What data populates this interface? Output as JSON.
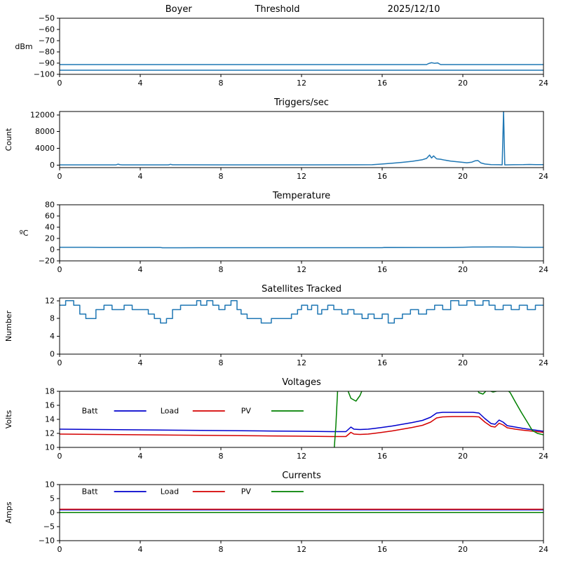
{
  "header": {
    "station": "Boyer",
    "metric": "Threshold",
    "date": "2025/12/10"
  },
  "colors": {
    "data_line": "#1f77b4",
    "batt": "#0000cd",
    "load": "#d40000",
    "pv": "#008000",
    "axis": "#000000"
  },
  "chart_data": [
    {
      "type": "line",
      "titles": [
        {
          "text": "Boyer",
          "x": 0.246
        },
        {
          "text": "Threshold",
          "x": 0.45
        },
        {
          "text": "2025/12/10",
          "x": 0.732
        }
      ],
      "ylabel": "dBm",
      "ylabel_rotated": false,
      "xlim": [
        0,
        24
      ],
      "ylim": [
        -100,
        -50
      ],
      "xticks": [
        0,
        4,
        8,
        12,
        16,
        20,
        24
      ],
      "yticks": [
        -50,
        -60,
        -70,
        -80,
        -90,
        -100
      ],
      "grid": false,
      "series": [
        {
          "name": "threshold-upper",
          "color": "#1f77b4",
          "x": [
            0,
            18.2,
            18.3,
            18.45,
            18.6,
            18.75,
            18.9,
            24
          ],
          "y": [
            -91.3,
            -91.3,
            -90.4,
            -89.6,
            -90.2,
            -89.8,
            -91.3,
            -91.3
          ]
        },
        {
          "name": "threshold-lower",
          "color": "#1f77b4",
          "x": [
            0,
            24
          ],
          "y": [
            -96.3,
            -96.3
          ]
        }
      ]
    },
    {
      "type": "line",
      "title": "Triggers/sec",
      "ylabel": "Count",
      "ylabel_rotated": true,
      "xlim": [
        0,
        24
      ],
      "ylim": [
        -600,
        12800
      ],
      "xticks": [
        0,
        4,
        8,
        12,
        16,
        20,
        24
      ],
      "yticks": [
        0,
        4000,
        8000,
        12000
      ],
      "grid": false,
      "series": [
        {
          "name": "triggers",
          "color": "#1f77b4",
          "x": [
            0,
            2.8,
            2.9,
            3.0,
            3.1,
            5.4,
            5.5,
            5.6,
            8,
            12,
            15.5,
            16,
            16.5,
            17,
            17.5,
            18,
            18.2,
            18.35,
            18.45,
            18.55,
            18.7,
            18.9,
            19.1,
            19.4,
            19.7,
            20,
            20.2,
            20.45,
            20.6,
            20.75,
            20.9,
            21.1,
            21.4,
            21.8,
            21.95,
            22.02,
            22.08,
            22.15,
            22.5,
            23,
            23.3,
            23.6,
            24
          ],
          "y": [
            60,
            60,
            220,
            90,
            60,
            60,
            180,
            70,
            60,
            60,
            80,
            250,
            450,
            650,
            900,
            1300,
            1600,
            2400,
            1700,
            2200,
            1500,
            1400,
            1200,
            950,
            800,
            650,
            550,
            700,
            1000,
            1100,
            500,
            250,
            120,
            80,
            60,
            13000,
            60,
            60,
            80,
            100,
            150,
            120,
            100
          ]
        }
      ]
    },
    {
      "type": "line",
      "title": "Temperature",
      "ylabel": "ºC",
      "ylabel_rotated": false,
      "xlim": [
        0,
        24
      ],
      "ylim": [
        -20,
        80
      ],
      "xticks": [
        0,
        4,
        8,
        12,
        16,
        20,
        24
      ],
      "yticks": [
        -20,
        0,
        20,
        40,
        60,
        80
      ],
      "grid": false,
      "series": [
        {
          "name": "temperature",
          "color": "#1f77b4",
          "x": [
            0,
            2,
            4,
            5,
            5.1,
            7,
            9,
            11,
            13,
            15,
            16,
            16.1,
            18,
            19.5,
            20,
            20.5,
            21,
            21.5,
            22,
            22.5,
            23,
            24
          ],
          "y": [
            4.2,
            4.1,
            4.0,
            4.0,
            3.3,
            3.4,
            3.5,
            3.5,
            3.4,
            3.5,
            3.5,
            4.0,
            3.9,
            4.0,
            4.3,
            4.6,
            4.8,
            4.9,
            4.8,
            4.6,
            4.3,
            4.2
          ]
        }
      ]
    },
    {
      "type": "line",
      "title": "Satellites Tracked",
      "ylabel": "Number",
      "ylabel_rotated": true,
      "xlim": [
        0,
        24
      ],
      "ylim": [
        0,
        12.6
      ],
      "xticks": [
        0,
        4,
        8,
        12,
        16,
        20,
        24
      ],
      "yticks": [
        0,
        4,
        8,
        12
      ],
      "grid": false,
      "series": [
        {
          "name": "satellites",
          "color": "#1f77b4",
          "draw": "step",
          "x": [
            0,
            0.3,
            0.7,
            1.0,
            1.3,
            1.8,
            2.2,
            2.6,
            3.2,
            3.6,
            4.0,
            4.4,
            4.7,
            5.0,
            5.3,
            5.6,
            6.0,
            6.5,
            6.8,
            7.0,
            7.3,
            7.6,
            7.9,
            8.2,
            8.5,
            8.8,
            9.0,
            9.3,
            9.6,
            10.0,
            10.5,
            11.0,
            11.5,
            11.8,
            12.0,
            12.3,
            12.5,
            12.8,
            13.0,
            13.3,
            13.6,
            14.0,
            14.3,
            14.6,
            15.0,
            15.3,
            15.6,
            16.0,
            16.3,
            16.6,
            17.0,
            17.4,
            17.8,
            18.2,
            18.6,
            19.0,
            19.4,
            19.8,
            20.2,
            20.6,
            21.0,
            21.3,
            21.6,
            22.0,
            22.4,
            22.8,
            23.2,
            23.6,
            24.0
          ],
          "y": [
            11,
            12,
            11,
            9,
            8,
            10,
            11,
            10,
            11,
            10,
            10,
            9,
            8,
            7,
            8,
            10,
            11,
            11,
            12,
            11,
            12,
            11,
            10,
            11,
            12,
            10,
            9,
            8,
            8,
            7,
            8,
            8,
            9,
            10,
            11,
            10,
            11,
            9,
            10,
            11,
            10,
            9,
            10,
            9,
            8,
            9,
            8,
            9,
            7,
            8,
            9,
            10,
            9,
            10,
            11,
            10,
            12,
            11,
            12,
            11,
            12,
            11,
            10,
            11,
            10,
            11,
            10,
            11,
            11
          ]
        }
      ]
    },
    {
      "type": "line",
      "title": "Voltages",
      "ylabel": "Volts",
      "ylabel_rotated": true,
      "xlim": [
        0,
        24
      ],
      "ylim": [
        10,
        18
      ],
      "xticks": [
        0,
        4,
        8,
        12,
        16,
        20,
        24
      ],
      "yticks": [
        10,
        12,
        14,
        16,
        18
      ],
      "grid": false,
      "legend": {
        "y": 15.2,
        "items": [
          {
            "label": "Batt",
            "color": "#0000cd",
            "tx": 1.1,
            "lx1": 2.7,
            "lx2": 4.3
          },
          {
            "label": "Load",
            "color": "#d40000",
            "tx": 5.0,
            "lx1": 6.6,
            "lx2": 8.2
          },
          {
            "label": "PV",
            "color": "#008000",
            "tx": 9.0,
            "lx1": 10.5,
            "lx2": 12.1
          }
        ]
      },
      "series": [
        {
          "name": "batt-volts",
          "color": "#0000cd",
          "x": [
            0,
            2,
            4,
            6,
            8,
            10,
            12,
            13.5,
            14.2,
            14.45,
            14.6,
            14.9,
            15.3,
            15.6,
            16,
            16.5,
            17,
            17.5,
            18,
            18.4,
            18.7,
            19,
            19.5,
            20,
            20.5,
            20.8,
            21.1,
            21.4,
            21.6,
            21.8,
            22.0,
            22.2,
            22.6,
            23,
            23.5,
            24
          ],
          "y": [
            12.6,
            12.55,
            12.5,
            12.45,
            12.4,
            12.35,
            12.3,
            12.25,
            12.25,
            12.9,
            12.6,
            12.55,
            12.6,
            12.7,
            12.85,
            13.05,
            13.3,
            13.55,
            13.85,
            14.3,
            14.9,
            15.0,
            15.0,
            15.0,
            15.0,
            14.9,
            14.1,
            13.4,
            13.3,
            13.9,
            13.6,
            13.1,
            12.9,
            12.7,
            12.5,
            12.3
          ]
        },
        {
          "name": "load-volts",
          "color": "#d40000",
          "x": [
            0,
            2,
            4,
            6,
            8,
            10,
            12,
            13.5,
            14.2,
            14.45,
            14.6,
            14.9,
            15.3,
            15.6,
            16,
            16.5,
            17,
            17.5,
            18,
            18.4,
            18.7,
            19,
            19.5,
            20,
            20.5,
            20.8,
            21.1,
            21.4,
            21.6,
            21.8,
            22.0,
            22.2,
            22.6,
            23,
            23.5,
            24
          ],
          "y": [
            11.9,
            11.85,
            11.8,
            11.75,
            11.7,
            11.65,
            11.6,
            11.55,
            11.55,
            12.15,
            11.9,
            11.85,
            11.9,
            12.0,
            12.15,
            12.35,
            12.6,
            12.85,
            13.15,
            13.6,
            14.2,
            14.35,
            14.4,
            14.4,
            14.4,
            14.35,
            13.6,
            13.0,
            12.9,
            13.45,
            13.2,
            12.8,
            12.6,
            12.45,
            12.3,
            12.15
          ]
        },
        {
          "name": "pv-volts",
          "color": "#008000",
          "x": [
            0,
            13.6,
            13.7,
            13.8,
            14.2,
            14.45,
            14.7,
            14.9,
            15.1,
            20.6,
            20.8,
            21.0,
            21.2,
            21.5,
            21.8,
            22.0,
            22.2,
            22.35,
            22.6,
            22.9,
            23.2,
            23.45,
            23.7,
            24
          ],
          "y": [
            9.0,
            9.0,
            13.0,
            18.8,
            18.8,
            17.0,
            16.6,
            17.4,
            18.8,
            18.8,
            17.8,
            17.6,
            18.2,
            17.9,
            18.1,
            18.4,
            18.2,
            17.8,
            16.5,
            15.0,
            13.6,
            12.4,
            12.0,
            11.8
          ]
        }
      ]
    },
    {
      "type": "line",
      "title": "Currents",
      "ylabel": "Amps",
      "ylabel_rotated": true,
      "xlim": [
        0,
        24
      ],
      "ylim": [
        -10,
        10
      ],
      "xticks": [
        0,
        4,
        8,
        12,
        16,
        20,
        24
      ],
      "yticks": [
        -10,
        -5,
        0,
        5,
        10
      ],
      "grid": false,
      "legend": {
        "y": 7.5,
        "items": [
          {
            "label": "Batt",
            "color": "#0000cd",
            "tx": 1.1,
            "lx1": 2.7,
            "lx2": 4.3
          },
          {
            "label": "Load",
            "color": "#d40000",
            "tx": 5.0,
            "lx1": 6.6,
            "lx2": 8.2
          },
          {
            "label": "PV",
            "color": "#008000",
            "tx": 9.0,
            "lx1": 10.5,
            "lx2": 12.1
          }
        ]
      },
      "series": [
        {
          "name": "batt-amps",
          "color": "#0000cd",
          "x": [
            0,
            24
          ],
          "y": [
            1.0,
            1.0
          ]
        },
        {
          "name": "load-amps",
          "color": "#d40000",
          "x": [
            0,
            24
          ],
          "y": [
            1.2,
            1.2
          ]
        },
        {
          "name": "pv-amps",
          "color": "#008000",
          "x": [
            0,
            24
          ],
          "y": [
            0.05,
            0.05
          ]
        }
      ]
    }
  ]
}
